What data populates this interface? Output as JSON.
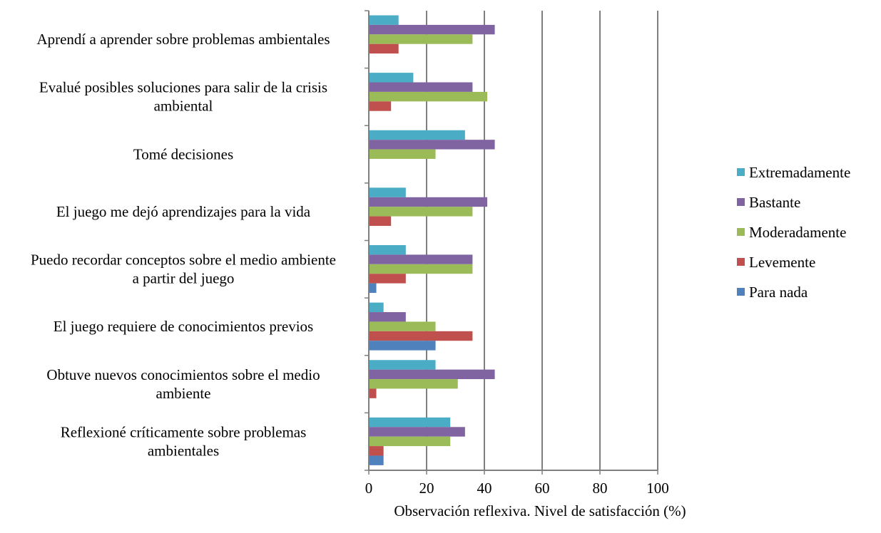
{
  "chart_data": {
    "type": "bar",
    "orientation": "horizontal",
    "xlabel": "Observación reflexiva. Nivel de satisfacción (%)",
    "xlim": [
      0,
      100
    ],
    "xticks": [
      0,
      20,
      40,
      60,
      80,
      100
    ],
    "grid": "vertical",
    "legend_position": "right",
    "categories": [
      [
        "Aprendí a aprender sobre problemas ambientales"
      ],
      [
        "Evalué posibles soluciones para salir de la crisis",
        "ambiental"
      ],
      [
        "Tomé decisiones"
      ],
      [
        "El juego me dejó aprendizajes para la vida"
      ],
      [
        "Puedo recordar conceptos sobre el medio ambiente",
        "a partir del juego"
      ],
      [
        "El juego requiere de conocimientos previos"
      ],
      [
        "Obtuve nuevos conocimientos sobre el medio",
        "ambiente"
      ],
      [
        "Reflexioné críticamente sobre problemas",
        "ambientales"
      ]
    ],
    "series": [
      {
        "name": "Extremadamente",
        "color": "#4BACC6",
        "values": [
          10.3,
          15.4,
          33.3,
          12.8,
          12.8,
          5.1,
          23.1,
          28.2
        ]
      },
      {
        "name": "Bastante",
        "color": "#8064A2",
        "values": [
          43.6,
          35.9,
          43.6,
          41.0,
          35.9,
          12.8,
          43.6,
          33.3
        ]
      },
      {
        "name": "Moderadamente",
        "color": "#9BBB59",
        "values": [
          35.9,
          41.0,
          23.1,
          35.9,
          35.9,
          23.1,
          30.8,
          28.2
        ]
      },
      {
        "name": "Levemente",
        "color": "#C0504D",
        "values": [
          10.3,
          7.7,
          0,
          7.7,
          12.8,
          35.9,
          2.6,
          5.1
        ]
      },
      {
        "name": "Para nada",
        "color": "#4F81BD",
        "values": [
          0,
          0,
          0,
          0,
          2.6,
          23.1,
          0,
          5.1
        ]
      }
    ]
  }
}
